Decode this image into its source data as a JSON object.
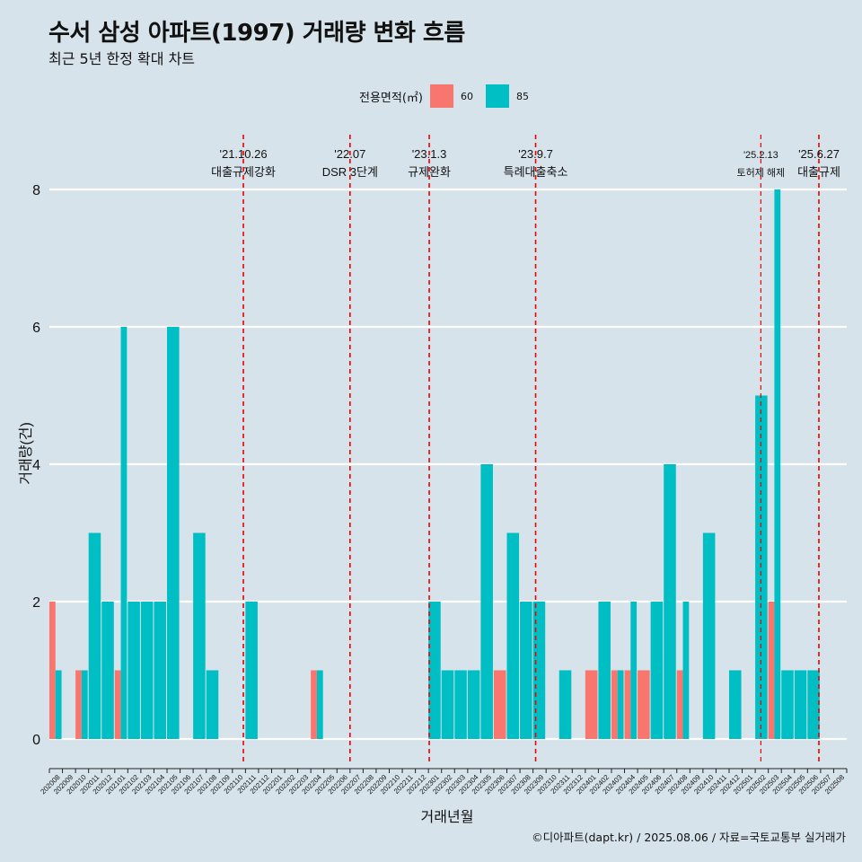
{
  "title": "수서 삼성 아파트(1997) 거래량 변화 흐름",
  "subtitle": "최근 5년 한정 확대 차트",
  "caption": "©디아파트(dapt.kr) / 2025.08.06 / 자료=국토교통부 실거래가",
  "colors": {
    "s60": "#f8766d",
    "s85": "#00bfc4",
    "grid": "#ffffff",
    "event": "#ee0000"
  },
  "legend": {
    "title": "전용면적(㎡)",
    "items": [
      {
        "label": "60"
      },
      {
        "label": "85"
      }
    ]
  },
  "chart_data": {
    "type": "bar",
    "xlabel": "거래년월",
    "ylabel": "거래량(건)",
    "ylim": [
      0,
      8
    ],
    "yticks": [
      0,
      2,
      4,
      6,
      8
    ],
    "grid": true,
    "legend_position": "top",
    "categories": [
      "202008",
      "202009",
      "202010",
      "202011",
      "202012",
      "202101",
      "202102",
      "202103",
      "202104",
      "202105",
      "202106",
      "202107",
      "202108",
      "202109",
      "202110",
      "202111",
      "202112",
      "202201",
      "202202",
      "202203",
      "202204",
      "202205",
      "202206",
      "202207",
      "202208",
      "202209",
      "202210",
      "202211",
      "202212",
      "202301",
      "202302",
      "202303",
      "202304",
      "202305",
      "202306",
      "202307",
      "202308",
      "202309",
      "202310",
      "202311",
      "202312",
      "202401",
      "202402",
      "202403",
      "202404",
      "202405",
      "202406",
      "202407",
      "202408",
      "202409",
      "202410",
      "202411",
      "202412",
      "202501",
      "202502",
      "202503",
      "202504",
      "202505",
      "202506",
      "202507",
      "202508"
    ],
    "series": [
      {
        "name": "60",
        "values": [
          2,
          0,
          1,
          0,
          0,
          1,
          0,
          0,
          0,
          0,
          0,
          0,
          0,
          0,
          0,
          0,
          0,
          0,
          0,
          0,
          1,
          0,
          0,
          0,
          0,
          0,
          0,
          0,
          0,
          0,
          0,
          0,
          0,
          0,
          1,
          0,
          0,
          0,
          0,
          0,
          0,
          1,
          0,
          1,
          1,
          1,
          0,
          0,
          1,
          0,
          0,
          0,
          0,
          0,
          0,
          2,
          0,
          0,
          0,
          0,
          0
        ]
      },
      {
        "name": "85",
        "values": [
          1,
          0,
          1,
          3,
          2,
          6,
          2,
          2,
          2,
          6,
          0,
          3,
          1,
          0,
          0,
          2,
          0,
          0,
          0,
          0,
          1,
          0,
          0,
          0,
          0,
          0,
          0,
          0,
          0,
          2,
          1,
          1,
          1,
          4,
          0,
          3,
          2,
          2,
          0,
          1,
          0,
          0,
          2,
          1,
          2,
          0,
          2,
          4,
          2,
          0,
          3,
          0,
          1,
          0,
          5,
          8,
          1,
          1,
          1,
          0,
          0
        ]
      }
    ],
    "annotations": [
      {
        "date": "'21.10.26",
        "label": "대출규제강화",
        "after": "202110",
        "frac": 0.84
      },
      {
        "date": "'22.07",
        "label": "DSR 3단계",
        "after": "202207",
        "frac": 0.0
      },
      {
        "date": "'23.1.3",
        "label": "규제완화",
        "after": "202301",
        "frac": 0.06
      },
      {
        "date": "'23.9.7",
        "label": "특례대출축소",
        "after": "202309",
        "frac": 0.2
      },
      {
        "date": "'25.2.13",
        "label": "토허제 해제",
        "after": "202502",
        "frac": 0.43
      },
      {
        "date": "'25.6.27",
        "label": "대출규제",
        "after": "202506",
        "frac": 0.87
      }
    ]
  }
}
